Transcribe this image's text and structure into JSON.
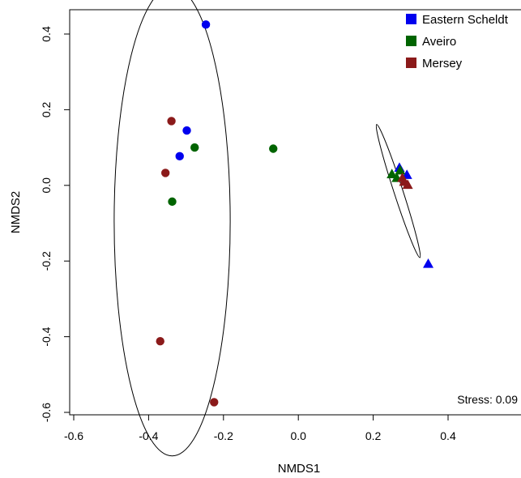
{
  "chart_data": {
    "type": "scatter",
    "xlabel": "NMDS1",
    "ylabel": "NMDS2",
    "xlim": [
      -0.6,
      0.4
    ],
    "ylim": [
      -0.6,
      0.4
    ],
    "x_ticks": [
      "-0.6",
      "-0.4",
      "-0.2",
      "0.0",
      "0.2",
      "0.4"
    ],
    "y_ticks": [
      "-0.6",
      "-0.4",
      "-0.2",
      "0.0",
      "0.2",
      "0.4"
    ],
    "x_tick_values": [
      -0.6,
      -0.4,
      -0.2,
      0.0,
      0.2,
      0.4
    ],
    "y_tick_values": [
      -0.6,
      -0.4,
      -0.2,
      0.0,
      0.2,
      0.4
    ],
    "annotation": "Stress: 0.09",
    "legend_position": "top-right",
    "grid": false,
    "series": [
      {
        "name": "Eastern Scheldt",
        "color": "#0000ee",
        "circles": [
          [
            -0.247,
            0.425
          ],
          [
            -0.298,
            0.145
          ],
          [
            -0.317,
            0.077
          ]
        ],
        "triangles": [
          [
            0.27,
            0.047
          ],
          [
            0.29,
            0.028
          ],
          [
            0.347,
            -0.207
          ]
        ]
      },
      {
        "name": "Aveiro",
        "color": "#006400",
        "circles": [
          [
            -0.277,
            0.1
          ],
          [
            -0.067,
            0.097
          ],
          [
            -0.337,
            -0.043
          ]
        ],
        "triangles": [
          [
            0.25,
            0.03
          ],
          [
            0.263,
            0.02
          ],
          [
            0.272,
            0.04
          ]
        ]
      },
      {
        "name": "Mersey",
        "color": "#8b1a1a",
        "circles": [
          [
            -0.339,
            0.17
          ],
          [
            -0.355,
            0.033
          ],
          [
            -0.369,
            -0.412
          ],
          [
            -0.225,
            -0.573
          ]
        ],
        "triangles": [
          [
            0.278,
            0.02
          ],
          [
            0.283,
            0.01
          ],
          [
            0.292,
            0.002
          ]
        ]
      }
    ],
    "ellipses": [
      {
        "group": "circles",
        "cx": -0.337,
        "cy": -0.095,
        "rx_deg": 0.155,
        "ry_deg": 0.62,
        "angle": 0
      },
      {
        "group": "triangles",
        "cx": 0.267,
        "cy": -0.015,
        "rx_deg": 0.012,
        "ry_deg": 0.185,
        "angle": -18
      }
    ]
  }
}
